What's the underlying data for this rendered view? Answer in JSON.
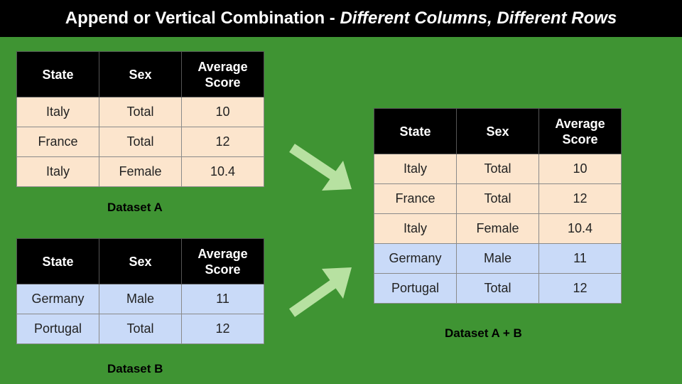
{
  "title": {
    "main": "Append or Vertical Combination - ",
    "emphasis": "Different Columns, Different Rows"
  },
  "headers": [
    "State",
    "Sex",
    "Average Score"
  ],
  "dataset_a": {
    "caption": "Dataset A",
    "rows": [
      [
        "Italy",
        "Total",
        "10"
      ],
      [
        "France",
        "Total",
        "12"
      ],
      [
        "Italy",
        "Female",
        "10.4"
      ]
    ]
  },
  "dataset_b": {
    "caption": "Dataset B",
    "rows": [
      [
        "Germany",
        "Male",
        "11"
      ],
      [
        "Portugal",
        "Total",
        "12"
      ]
    ]
  },
  "dataset_ab": {
    "caption": "Dataset A + B",
    "rows_from_a": [
      [
        "Italy",
        "Total",
        "10"
      ],
      [
        "France",
        "Total",
        "12"
      ],
      [
        "Italy",
        "Female",
        "10.4"
      ]
    ],
    "rows_from_b": [
      [
        "Germany",
        "Male",
        "11"
      ],
      [
        "Portugal",
        "Total",
        "12"
      ]
    ]
  },
  "colors": {
    "background": "#3f9433",
    "header": "#000000",
    "dataset_a_rows": "#fce5cd",
    "dataset_b_rows": "#c9daf8",
    "arrow": "#b7e1a1"
  }
}
